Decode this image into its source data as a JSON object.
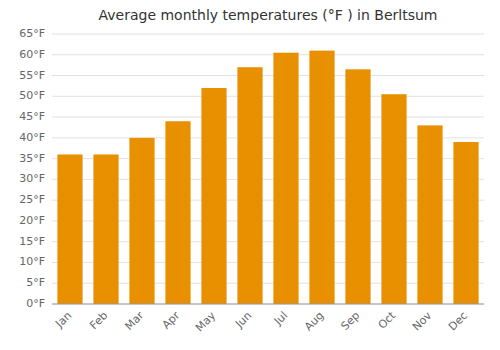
{
  "chart_data": {
    "type": "bar",
    "title": "Average monthly temperatures (°F ) in Berltsum",
    "categories": [
      "Jan",
      "Feb",
      "Mar",
      "Apr",
      "May",
      "Jun",
      "Jul",
      "Aug",
      "Sep",
      "Oct",
      "Nov",
      "Dec"
    ],
    "values": [
      36,
      36,
      40,
      44,
      52,
      57,
      60.5,
      61,
      56.5,
      50.5,
      43,
      39
    ],
    "color": "#E89000",
    "ylim": [
      0,
      65
    ],
    "yticks": [
      {
        "value": 0,
        "label": "0°F"
      },
      {
        "value": 5,
        "label": "5°F"
      },
      {
        "value": 10,
        "label": "10°F"
      },
      {
        "value": 15,
        "label": "15°F"
      },
      {
        "value": 20,
        "label": "20°F"
      },
      {
        "value": 25,
        "label": "25°F"
      },
      {
        "value": 30,
        "label": "30°F"
      },
      {
        "value": 35,
        "label": "35°F"
      },
      {
        "value": 40,
        "label": "40°F"
      },
      {
        "value": 45,
        "label": "45°F"
      },
      {
        "value": 50,
        "label": "50°F"
      },
      {
        "value": 55,
        "label": "55°F"
      },
      {
        "value": 60,
        "label": "60°F"
      },
      {
        "value": 65,
        "label": "65°F"
      }
    ],
    "grid": true
  }
}
